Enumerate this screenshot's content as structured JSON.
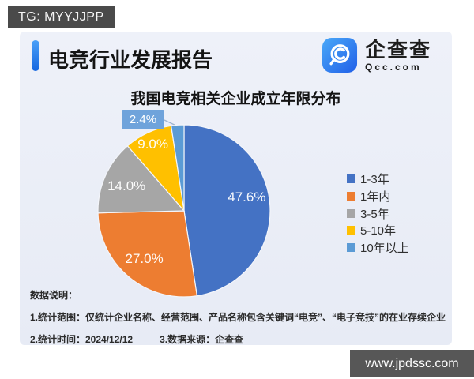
{
  "badges": {
    "tg": "TG: MYYJJPP",
    "watermark": "www.jpdssc.com"
  },
  "header": {
    "title": "电竞行业发展报告",
    "logo": {
      "name": "企查查",
      "domain": "Qcc.com"
    }
  },
  "chart_data": {
    "type": "pie",
    "title": "我国电竞相关企业成立年限分布",
    "start_angle": "12 o'clock, clockwise",
    "legend_position": "right",
    "slices": [
      {
        "label": "1-3年",
        "value": 47.6,
        "display": "47.6%",
        "color": "#4472C4",
        "label_r": 0.73
      },
      {
        "label": "1年内",
        "value": 27.0,
        "display": "27.0%",
        "color": "#ED7D31",
        "label_r": 0.72
      },
      {
        "label": "3-5年",
        "value": 14.0,
        "display": "14.0%",
        "color": "#A6A6A6",
        "label_r": 0.73
      },
      {
        "label": "5-10年",
        "value": 9.0,
        "display": "9.0%",
        "color": "#FFC000",
        "label_r": 0.86
      },
      {
        "label": "10年以上",
        "value": 2.4,
        "display": "2.4%",
        "color": "#5B9BD5",
        "callout": true
      }
    ]
  },
  "notes": {
    "heading": "数据说明：",
    "line1": "1.统计范围：仅统计企业名称、经营范围、产品名称包含关键词“电竞”、“电子竞技”的在业存续企业",
    "line2_part1": "2.统计时间：2024/12/12",
    "line2_part2": "3.数据来源：企查查"
  }
}
